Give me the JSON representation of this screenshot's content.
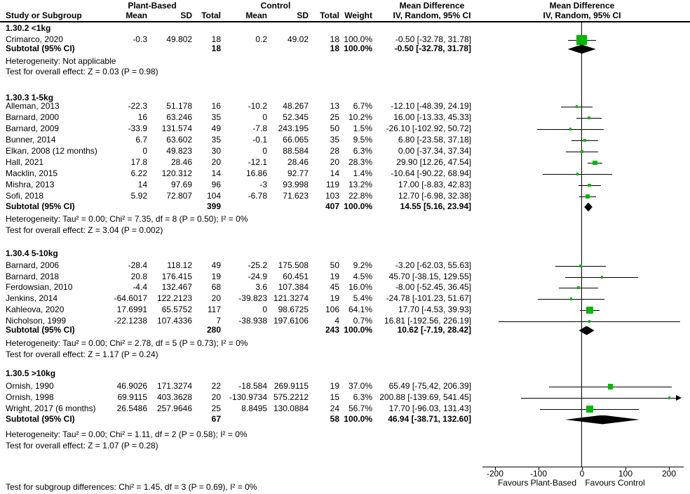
{
  "header": {
    "study_col": "Study or Subgroup",
    "group1": "Plant-Based",
    "group2": "Control",
    "mean": "Mean",
    "sd": "SD",
    "total": "Total",
    "weight": "Weight",
    "md": "Mean Difference",
    "iv_random": "IV, Random, 95% CI"
  },
  "axis": {
    "ticks": [
      "-200",
      "-100",
      "0",
      "100",
      "200"
    ],
    "favours_left": "Favours Plant-Based",
    "favours_right": "Favours Control"
  },
  "footer": {
    "subgroup_test": "Test for subgroup differences: Chi² = 1.45, df = 3 (P = 0.69), I² = 0%"
  },
  "colors": {
    "marker_green": "#00b800",
    "diamond_black": "#000000",
    "text_black": "#000000"
  },
  "chart_data": {
    "type": "forest",
    "effect_measure": "Mean Difference, IV, Random, 95% CI",
    "x_ticks": [
      -200,
      -100,
      0,
      100,
      200
    ],
    "x_range_displayed": [
      -230,
      230
    ],
    "favours": [
      "Favours Plant-Based",
      "Favours Control"
    ],
    "groups": [
      {
        "label": "1.30.2 <1kg",
        "studies": [
          {
            "study": "Crimarco, 2020",
            "mean_pb": "-0.3",
            "sd_pb": "49.802",
            "total_pb": "18",
            "mean_c": "0.2",
            "sd_c": "49.02",
            "total_c": "18",
            "weight": "100.0%",
            "weight_pct": 100.0,
            "md": -0.5,
            "ci_low": -32.78,
            "ci_high": 31.78,
            "md_label": "-0.50 [-32.78, 31.78]"
          }
        ],
        "subtotal": {
          "label": "Subtotal (95% CI)",
          "total_pb": "18",
          "total_c": "18",
          "weight": "100.0%",
          "md": -0.5,
          "ci_low": -32.78,
          "ci_high": 31.78,
          "md_label": "-0.50 [-32.78, 31.78]"
        },
        "heterogeneity": "Heterogeneity: Not applicable",
        "overall_effect": "Test for overall effect: Z = 0.03 (P = 0.98)"
      },
      {
        "label": "1.30.3 1-5kg",
        "studies": [
          {
            "study": "Alleman, 2013",
            "mean_pb": "-22.3",
            "sd_pb": "51.178",
            "total_pb": "16",
            "mean_c": "-10.2",
            "sd_c": "48.267",
            "total_c": "13",
            "weight": "6.7%",
            "weight_pct": 6.7,
            "md": -12.1,
            "ci_low": -48.39,
            "ci_high": 24.19,
            "md_label": "-12.10 [-48.39, 24.19]"
          },
          {
            "study": "Barnard, 2000",
            "mean_pb": "16",
            "sd_pb": "63.246",
            "total_pb": "35",
            "mean_c": "0",
            "sd_c": "52.345",
            "total_c": "25",
            "weight": "10.2%",
            "weight_pct": 10.2,
            "md": 16.0,
            "ci_low": -13.33,
            "ci_high": 45.33,
            "md_label": "16.00 [-13.33, 45.33]"
          },
          {
            "study": "Barnard, 2009",
            "mean_pb": "-33.9",
            "sd_pb": "131.574",
            "total_pb": "49",
            "mean_c": "-7.8",
            "sd_c": "243.195",
            "total_c": "50",
            "weight": "1.5%",
            "weight_pct": 1.5,
            "md": -26.1,
            "ci_low": -102.92,
            "ci_high": 50.72,
            "md_label": "-26.10 [-102.92, 50.72]"
          },
          {
            "study": "Bunner, 2014",
            "mean_pb": "6.7",
            "sd_pb": "63.602",
            "total_pb": "35",
            "mean_c": "-0.1",
            "sd_c": "66.065",
            "total_c": "35",
            "weight": "9.5%",
            "weight_pct": 9.5,
            "md": 6.8,
            "ci_low": -23.58,
            "ci_high": 37.18,
            "md_label": "6.80 [-23.58, 37.18]"
          },
          {
            "study": "Elkan, 2008 (12 months)",
            "mean_pb": "0",
            "sd_pb": "49.823",
            "total_pb": "30",
            "mean_c": "0",
            "sd_c": "88.584",
            "total_c": "28",
            "weight": "6.3%",
            "weight_pct": 6.3,
            "md": 0.0,
            "ci_low": -37.34,
            "ci_high": 37.34,
            "md_label": "0.00 [-37.34, 37.34]"
          },
          {
            "study": "Hall, 2021",
            "mean_pb": "17.8",
            "sd_pb": "28.46",
            "total_pb": "20",
            "mean_c": "-12.1",
            "sd_c": "28.46",
            "total_c": "20",
            "weight": "28.3%",
            "weight_pct": 28.3,
            "md": 29.9,
            "ci_low": 12.26,
            "ci_high": 47.54,
            "md_label": "29.90 [12.26, 47.54]"
          },
          {
            "study": "Macklin, 2015",
            "mean_pb": "6.22",
            "sd_pb": "120.312",
            "total_pb": "14",
            "mean_c": "16.86",
            "sd_c": "92.77",
            "total_c": "14",
            "weight": "1.4%",
            "weight_pct": 1.4,
            "md": -10.64,
            "ci_low": -90.22,
            "ci_high": 68.94,
            "md_label": "-10.64 [-90.22, 68.94]"
          },
          {
            "study": "Mishra, 2013",
            "mean_pb": "14",
            "sd_pb": "97.69",
            "total_pb": "96",
            "mean_c": "-3",
            "sd_c": "93.998",
            "total_c": "119",
            "weight": "13.2%",
            "weight_pct": 13.2,
            "md": 17.0,
            "ci_low": -8.83,
            "ci_high": 42.83,
            "md_label": "17.00 [-8.83, 42.83]"
          },
          {
            "study": "Sofi, 2018",
            "mean_pb": "5.92",
            "sd_pb": "72.807",
            "total_pb": "104",
            "mean_c": "-6.78",
            "sd_c": "71.623",
            "total_c": "103",
            "weight": "22.8%",
            "weight_pct": 22.8,
            "md": 12.7,
            "ci_low": -6.98,
            "ci_high": 32.38,
            "md_label": "12.70 [-6.98, 32.38]"
          }
        ],
        "subtotal": {
          "label": "Subtotal (95% CI)",
          "total_pb": "399",
          "total_c": "407",
          "weight": "100.0%",
          "md": 14.55,
          "ci_low": 5.16,
          "ci_high": 23.94,
          "md_label": "14.55 [5.16, 23.94]"
        },
        "heterogeneity": "Heterogeneity: Tau² = 0.00; Chi² = 7.35, df = 8 (P = 0.50); I² = 0%",
        "overall_effect": "Test for overall effect: Z = 3.04 (P = 0.002)"
      },
      {
        "label": "1.30.4 5-10kg",
        "studies": [
          {
            "study": "Barnard, 2006",
            "mean_pb": "-28.4",
            "sd_pb": "118.12",
            "total_pb": "49",
            "mean_c": "-25.2",
            "sd_c": "175.508",
            "total_c": "50",
            "weight": "9.2%",
            "weight_pct": 9.2,
            "md": -3.2,
            "ci_low": -62.03,
            "ci_high": 55.63,
            "md_label": "-3.20 [-62.03, 55.63]"
          },
          {
            "study": "Barnard, 2018",
            "mean_pb": "20.8",
            "sd_pb": "176.415",
            "total_pb": "19",
            "mean_c": "-24.9",
            "sd_c": "60.451",
            "total_c": "19",
            "weight": "4.5%",
            "weight_pct": 4.5,
            "md": 45.7,
            "ci_low": -38.15,
            "ci_high": 129.55,
            "md_label": "45.70 [-38.15, 129.55]"
          },
          {
            "study": "Ferdowsian, 2010",
            "mean_pb": "-4.4",
            "sd_pb": "132.467",
            "total_pb": "68",
            "mean_c": "3.6",
            "sd_c": "107.384",
            "total_c": "45",
            "weight": "16.0%",
            "weight_pct": 16.0,
            "md": -8.0,
            "ci_low": -52.45,
            "ci_high": 36.45,
            "md_label": "-8.00 [-52.45, 36.45]"
          },
          {
            "study": "Jenkins, 2014",
            "mean_pb": "-64.6017",
            "sd_pb": "122.2123",
            "total_pb": "20",
            "mean_c": "-39.823",
            "sd_c": "121.3274",
            "total_c": "19",
            "weight": "5.4%",
            "weight_pct": 5.4,
            "md": -24.78,
            "ci_low": -101.23,
            "ci_high": 51.67,
            "md_label": "-24.78 [-101.23, 51.67]"
          },
          {
            "study": "Kahleova, 2020",
            "mean_pb": "17.6991",
            "sd_pb": "65.5752",
            "total_pb": "117",
            "mean_c": "0",
            "sd_c": "98.6725",
            "total_c": "106",
            "weight": "64.1%",
            "weight_pct": 64.1,
            "md": 17.7,
            "ci_low": -4.53,
            "ci_high": 39.93,
            "md_label": "17.70 [-4.53, 39.93]"
          },
          {
            "study": "Nicholson, 1999",
            "mean_pb": "-22.1238",
            "sd_pb": "107.4336",
            "total_pb": "7",
            "mean_c": "-38.938",
            "sd_c": "197.6106",
            "total_c": "4",
            "weight": "0.7%",
            "weight_pct": 0.7,
            "md": 16.81,
            "ci_low": -192.56,
            "ci_high": 226.19,
            "md_label": "16.81 [-192.56, 226.19]"
          }
        ],
        "subtotal": {
          "label": "Subtotal (95% CI)",
          "total_pb": "280",
          "total_c": "243",
          "weight": "100.0%",
          "md": 10.62,
          "ci_low": -7.19,
          "ci_high": 28.42,
          "md_label": "10.62 [-7.19, 28.42]"
        },
        "heterogeneity": "Heterogeneity: Tau² = 0.00; Chi² = 2.78, df = 5 (P = 0.73); I² = 0%",
        "overall_effect": "Test for overall effect: Z = 1.17 (P = 0.24)"
      },
      {
        "label": "1.30.5 >10kg",
        "studies": [
          {
            "study": "Ornish, 1990",
            "mean_pb": "46.9026",
            "sd_pb": "171.3274",
            "total_pb": "22",
            "mean_c": "-18.584",
            "sd_c": "269.9115",
            "total_c": "19",
            "weight": "37.0%",
            "weight_pct": 37.0,
            "md": 65.49,
            "ci_low": -75.42,
            "ci_high": 206.39,
            "md_label": "65.49 [-75.42, 206.39]"
          },
          {
            "study": "Ornish, 1998",
            "mean_pb": "69.9115",
            "sd_pb": "403.3628",
            "total_pb": "20",
            "mean_c": "-130.9734",
            "sd_c": "575.2212",
            "total_c": "15",
            "weight": "6.3%",
            "weight_pct": 6.3,
            "md": 200.88,
            "ci_low": -139.69,
            "ci_high": 541.45,
            "md_label": "200.88 [-139.69, 541.45]"
          },
          {
            "study": "Wright, 2017 (6 months)",
            "mean_pb": "26.5486",
            "sd_pb": "257.9646",
            "total_pb": "25",
            "mean_c": "8.8495",
            "sd_c": "130.0884",
            "total_c": "24",
            "weight": "56.7%",
            "weight_pct": 56.7,
            "md": 17.7,
            "ci_low": -96.03,
            "ci_high": 131.43,
            "md_label": "17.70 [-96.03, 131.43]"
          }
        ],
        "subtotal": {
          "label": "Subtotal (95% CI)",
          "total_pb": "67",
          "total_c": "58",
          "weight": "100.0%",
          "md": 46.94,
          "ci_low": -38.71,
          "ci_high": 132.6,
          "md_label": "46.94 [-38.71, 132.60]"
        },
        "heterogeneity": "Heterogeneity: Tau² = 0.00; Chi² = 1.11, df = 2 (P = 0.58); I² = 0%",
        "overall_effect": "Test for overall effect: Z = 1.07 (P = 0.28)"
      }
    ]
  }
}
